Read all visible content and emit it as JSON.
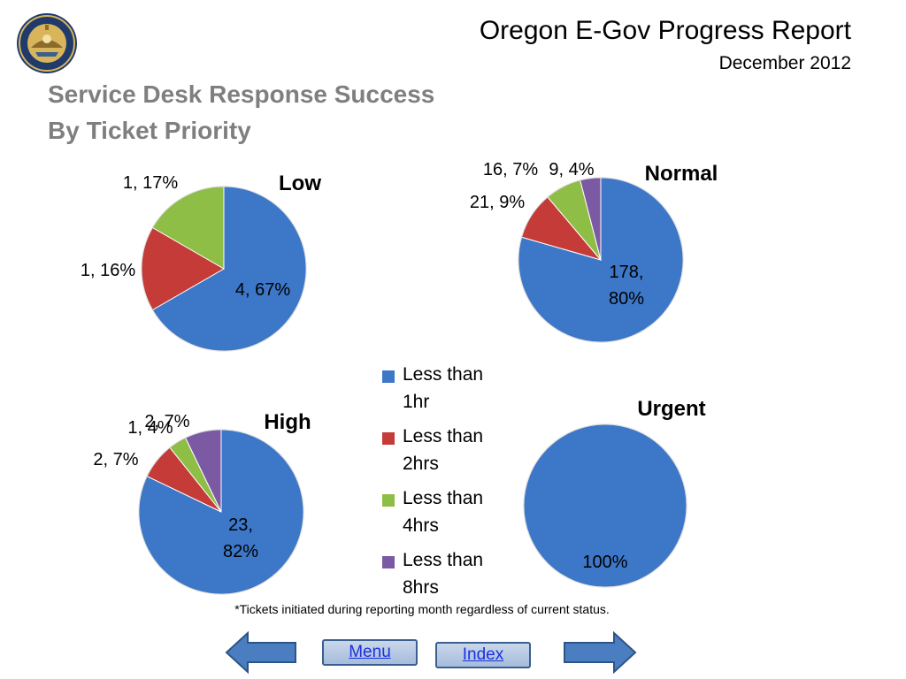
{
  "header": {
    "title": "Oregon E-Gov Progress Report",
    "date": "December 2012",
    "subtitle_line1": "Service Desk Response Success",
    "subtitle_line2": "By Ticket Priority"
  },
  "colors": {
    "less_than_1hr": "#3c77c8",
    "less_than_2hrs": "#c43b38",
    "less_than_4hrs": "#8fbe47",
    "less_than_8hrs": "#7c5aa3",
    "subtitle": "#7f7f7f",
    "nav_arrow": "#4a7ec0"
  },
  "legend": {
    "items": [
      {
        "label": "Less than 1hr",
        "color": "#3c77c8"
      },
      {
        "label": "Less than 2hrs",
        "color": "#c43b38"
      },
      {
        "label": "Less than 4hrs",
        "color": "#8fbe47"
      },
      {
        "label": "Less than 8hrs",
        "color": "#7c5aa3"
      }
    ]
  },
  "chart_data": [
    {
      "type": "pie",
      "title": "Low",
      "categories": [
        "Less than 1hr",
        "Less than 2hrs",
        "Less than 4hrs"
      ],
      "values": [
        4,
        1,
        1
      ],
      "percents": [
        67,
        16,
        17
      ],
      "labels": [
        "4, 67%",
        "1, 16%",
        "1, 17%"
      ]
    },
    {
      "type": "pie",
      "title": "Normal",
      "categories": [
        "Less than 1hr",
        "Less than 2hrs",
        "Less than 4hrs",
        "Less than 8hrs"
      ],
      "values": [
        178,
        21,
        16,
        9
      ],
      "percents": [
        80,
        9,
        7,
        4
      ],
      "labels": [
        "178, 80%",
        "21, 9%",
        "16, 7%",
        "9, 4%"
      ]
    },
    {
      "type": "pie",
      "title": "High",
      "categories": [
        "Less than 1hr",
        "Less than 2hrs",
        "Less than 4hrs",
        "Less than 8hrs"
      ],
      "values": [
        23,
        2,
        1,
        2
      ],
      "percents": [
        82,
        7,
        4,
        7
      ],
      "labels": [
        "23, 82%",
        "2, 7%",
        "1, 4%",
        "2, 7%"
      ]
    },
    {
      "type": "pie",
      "title": "Urgent",
      "categories": [
        "Less than 1hr"
      ],
      "values": [
        1
      ],
      "percents": [
        100
      ],
      "labels": [
        "100%"
      ]
    }
  ],
  "footnote": "*Tickets initiated  during reporting month regardless of current status.",
  "nav": {
    "menu_label": "Menu",
    "index_label": "Index",
    "back_icon": "left-arrow-icon",
    "forward_icon": "right-arrow-icon"
  },
  "seal": {
    "top_text": "STATE OF OREGON",
    "year": "1859"
  }
}
